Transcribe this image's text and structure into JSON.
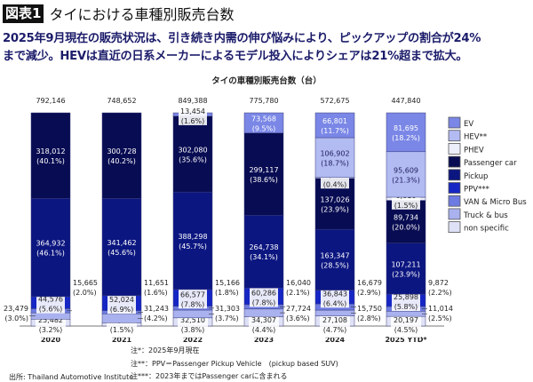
{
  "header": {
    "badge": "図表1",
    "title": "タイにおける車種別販売台数"
  },
  "subtitle": [
    "2025年9月現在の販売状況は、引き続き内需の伸び悩みにより、ピックアップの割合が24%",
    "まで減少。HEVは直近の日系メーカーによるモデル投入によりシェアは21%超まで拡大。"
  ],
  "notes": [
    "注*：2025年9月現在",
    "注**：PPV＝Passenger Pickup Vehicle　(pickup based SUV)",
    "注***：2023年まではPassenger carに含まれる"
  ],
  "source": "出所: Thailand Automotive Institute",
  "chart_data": {
    "type": "bar",
    "stacked": "percent",
    "title": "タイの車種別販売台数（台）",
    "legend_position": "right",
    "categories": [
      "2020",
      "2021",
      "2022",
      "2023",
      "2024",
      "2025 YTD*"
    ],
    "totals": [
      "792,146",
      "748,652",
      "849,388",
      "775,780",
      "572,675",
      "447,840"
    ],
    "series": [
      {
        "name": "non specific",
        "color": "#dfe1f6",
        "values": [
          25482,
          11544,
          32510,
          34307,
          27108,
          20197
        ],
        "labels": [
          "25,482",
          "11,544",
          "32,510",
          "34,307",
          "27,108",
          "20,197"
        ],
        "pct": [
          "(3.2%)",
          "(1.5%)",
          "(3.8%)",
          "(4.4%)",
          "(4.7%)",
          "(4.5%)"
        ]
      },
      {
        "name": "Truck & bus",
        "color": "#a9b1ef",
        "values": [
          23479,
          31243,
          31303,
          27724,
          15750,
          11014
        ],
        "labels": [
          "23,479",
          "31,243",
          "31,303",
          "27,724",
          "15,750",
          "11,014"
        ],
        "pct": [
          "(3.0%)",
          "(4.2%)",
          "(3.7%)",
          "(3.6%)",
          "(2.8%)",
          "(2.5%)"
        ]
      },
      {
        "name": "VAN & Micro Bus",
        "color": "#6e7be2",
        "values": [
          15665,
          11651,
          15166,
          16040,
          16679,
          9872
        ],
        "labels": [
          "15,665",
          "11,651",
          "15,166",
          "16,040",
          "16,679",
          "9,872"
        ],
        "pct": [
          "(2.0%)",
          "(1.6%)",
          "(1.8%)",
          "(2.1%)",
          "(2.9%)",
          "(2.2%)"
        ]
      },
      {
        "name": "PPV***",
        "color": "#1626c4",
        "values": [
          44576,
          52024,
          66577,
          60286,
          36843,
          25898
        ],
        "labels": [
          "44,576",
          "52,024",
          "66,577",
          "60,286",
          "36,843",
          "25,898"
        ],
        "pct": [
          "(5.6%)",
          "(6.9%)",
          "(7.8%)",
          "(7.8%)",
          "(6.4%)",
          "(5.8%)"
        ]
      },
      {
        "name": "Pickup",
        "color": "#0c1680",
        "values": [
          364932,
          341462,
          388298,
          264738,
          163347,
          107211
        ],
        "labels": [
          "364,932",
          "341,462",
          "388,298",
          "264,738",
          "163,347",
          "107,211"
        ],
        "pct": [
          "(46.1%)",
          "(45.6%)",
          "(45.7%)",
          "(34.1%)",
          "(28.5%)",
          "(23.9%)"
        ]
      },
      {
        "name": "Passenger car",
        "color": "#080c52",
        "values": [
          318012,
          300728,
          302080,
          299117,
          137026,
          89734
        ],
        "labels": [
          "318,012",
          "300,728",
          "302,080",
          "299,117",
          "137,026",
          "89,734"
        ],
        "pct": [
          "(40.1%)",
          "(40.2%)",
          "(35.6%)",
          "(38.6%)",
          "(23.9%)",
          "(20.0%)"
        ]
      },
      {
        "name": "PHEV",
        "color": "#eceef9",
        "values": [
          0,
          0,
          0,
          0,
          2219,
          6610
        ],
        "labels": [
          null,
          null,
          null,
          null,
          "2,219",
          "6,610"
        ],
        "pct": [
          null,
          null,
          null,
          null,
          "(0.4%)",
          "(1.5%)"
        ]
      },
      {
        "name": "HEV**",
        "color": "#b3bbf3",
        "values": [
          0,
          0,
          0,
          0,
          106902,
          95609
        ],
        "labels": [
          null,
          null,
          null,
          null,
          "106,902",
          "95,609"
        ],
        "pct": [
          null,
          null,
          null,
          null,
          "(18.7%)",
          "(21.3%)"
        ]
      },
      {
        "name": "EV",
        "color": "#7a87e6",
        "values": [
          0,
          0,
          13454,
          73568,
          66801,
          81695
        ],
        "labels": [
          null,
          null,
          "13,454",
          "73,568",
          "66,801",
          "81,695"
        ],
        "pct": [
          null,
          null,
          "(1.6%)",
          "(9.5%)",
          "(11.7%)",
          "(18.2%)"
        ]
      }
    ],
    "legend_order": [
      "EV",
      "HEV**",
      "PHEV",
      "Passenger car",
      "Pickup",
      "PPV***",
      "VAN & Micro Bus",
      "Truck & bus",
      "non specific"
    ]
  }
}
